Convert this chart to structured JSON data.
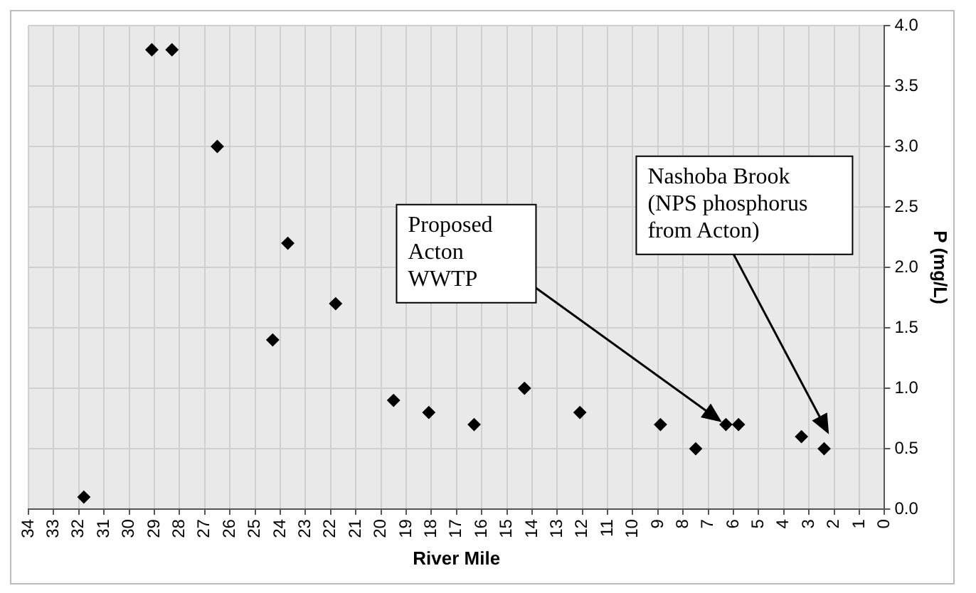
{
  "chart_data": {
    "type": "scatter",
    "xlabel": "River Mile",
    "ylabel": "P (mg/L)",
    "x": [
      31.8,
      29.1,
      28.3,
      26.5,
      24.3,
      23.7,
      21.8,
      19.5,
      18.1,
      16.3,
      14.3,
      12.1,
      8.9,
      7.5,
      6.3,
      5.8,
      3.3,
      2.4
    ],
    "values": [
      0.1,
      3.8,
      3.8,
      3.0,
      1.4,
      2.2,
      1.7,
      0.9,
      0.8,
      0.7,
      1.0,
      0.8,
      0.7,
      0.5,
      0.7,
      0.7,
      0.6,
      0.5
    ],
    "color": "#000000",
    "marker": "diamond",
    "grid": true,
    "legend": false,
    "xlim": [
      34,
      0
    ],
    "xticks": [
      34,
      33,
      32,
      31,
      30,
      29,
      28,
      27,
      26,
      25,
      24,
      23,
      22,
      21,
      20,
      19,
      18,
      17,
      16,
      15,
      14,
      13,
      12,
      11,
      10,
      9,
      8,
      7,
      6,
      5,
      4,
      3,
      2,
      1,
      0
    ],
    "ylim": [
      0,
      4
    ],
    "yticks": [
      {
        "value": 0,
        "label": "0.0"
      },
      {
        "value": 0.5,
        "label": "0.5"
      },
      {
        "value": 1,
        "label": "1.0"
      },
      {
        "value": 1.5,
        "label": "1.5"
      },
      {
        "value": 2,
        "label": "2.0"
      },
      {
        "value": 2.5,
        "label": "2.5"
      },
      {
        "value": 3,
        "label": "3.0"
      },
      {
        "value": 3.5,
        "label": "3.5"
      },
      {
        "value": 4,
        "label": "4.0"
      }
    ],
    "annotations": [
      "Proposed Acton WWTP",
      "Nashoba Brook (NPS phosphorus from Acton)"
    ]
  }
}
